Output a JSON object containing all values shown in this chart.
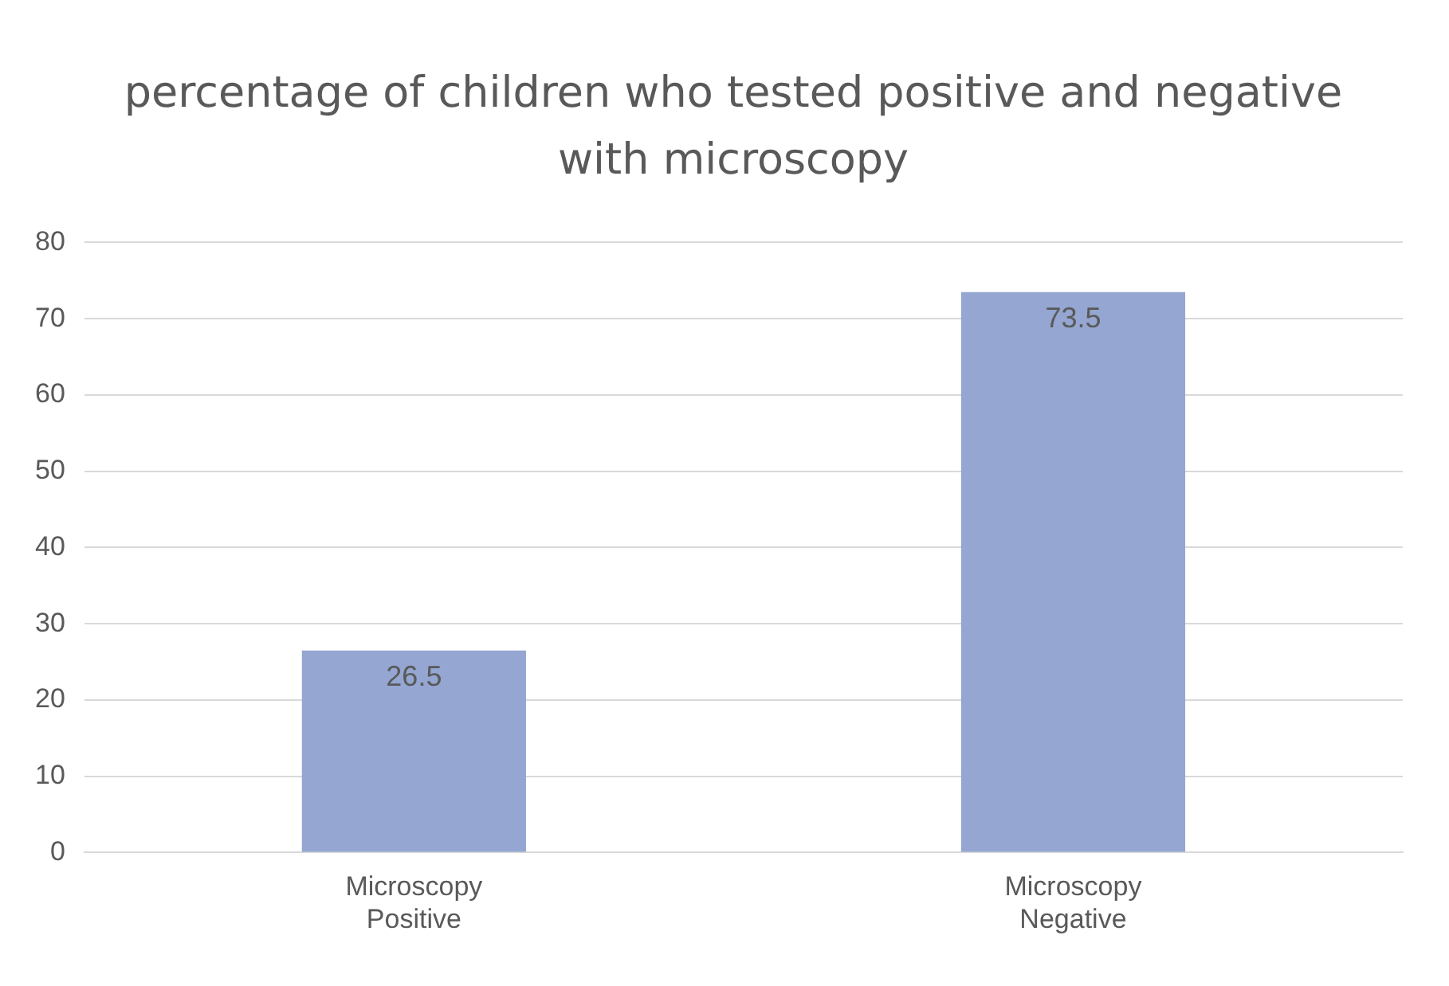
{
  "chart_data": {
    "type": "bar",
    "title": "percentage  of children  who tested positive and negative with microscopy",
    "categories": [
      "Microscopy Positive",
      "Microscopy Negative"
    ],
    "values": [
      26.5,
      73.5
    ],
    "color": "#94a6d1",
    "ylim": [
      0,
      80
    ],
    "yticks": [
      0,
      10,
      20,
      30,
      40,
      50,
      60,
      70,
      80
    ],
    "grid": "y",
    "data_labels": true,
    "legend": false
  }
}
